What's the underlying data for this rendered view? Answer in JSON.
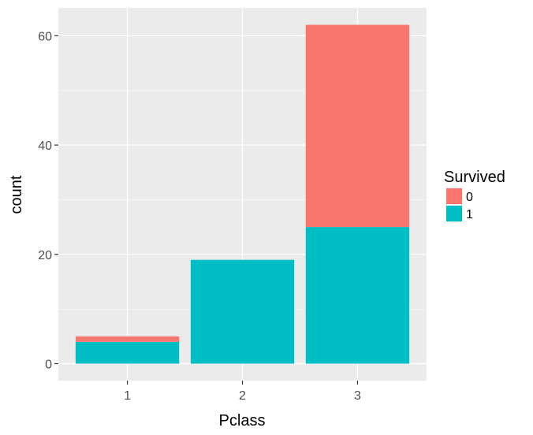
{
  "chart_data": {
    "type": "bar",
    "stacked": true,
    "title": "",
    "xlabel": "Pclass",
    "ylabel": "count",
    "categories": [
      "1",
      "2",
      "3"
    ],
    "series": [
      {
        "name": "0",
        "values": [
          1,
          0,
          37
        ],
        "color": "#F8766D"
      },
      {
        "name": "1",
        "values": [
          4,
          19,
          25
        ],
        "color": "#00BFC4"
      }
    ],
    "ylim": [
      -3.1,
      65.1
    ],
    "yticks": [
      "0",
      "20",
      "40",
      "60"
    ],
    "ytick_values": [
      0,
      20,
      40,
      60
    ],
    "grid": true,
    "legend": {
      "title": "Survived",
      "position": "right",
      "entries": [
        "0",
        "1"
      ]
    },
    "colors": {
      "panel_background": "#EBEBEB",
      "grid_major": "#FFFFFF",
      "grid_minor": "#F5F5F5",
      "axis_text": "#4D4D4D",
      "axis_title": "#000000"
    }
  }
}
